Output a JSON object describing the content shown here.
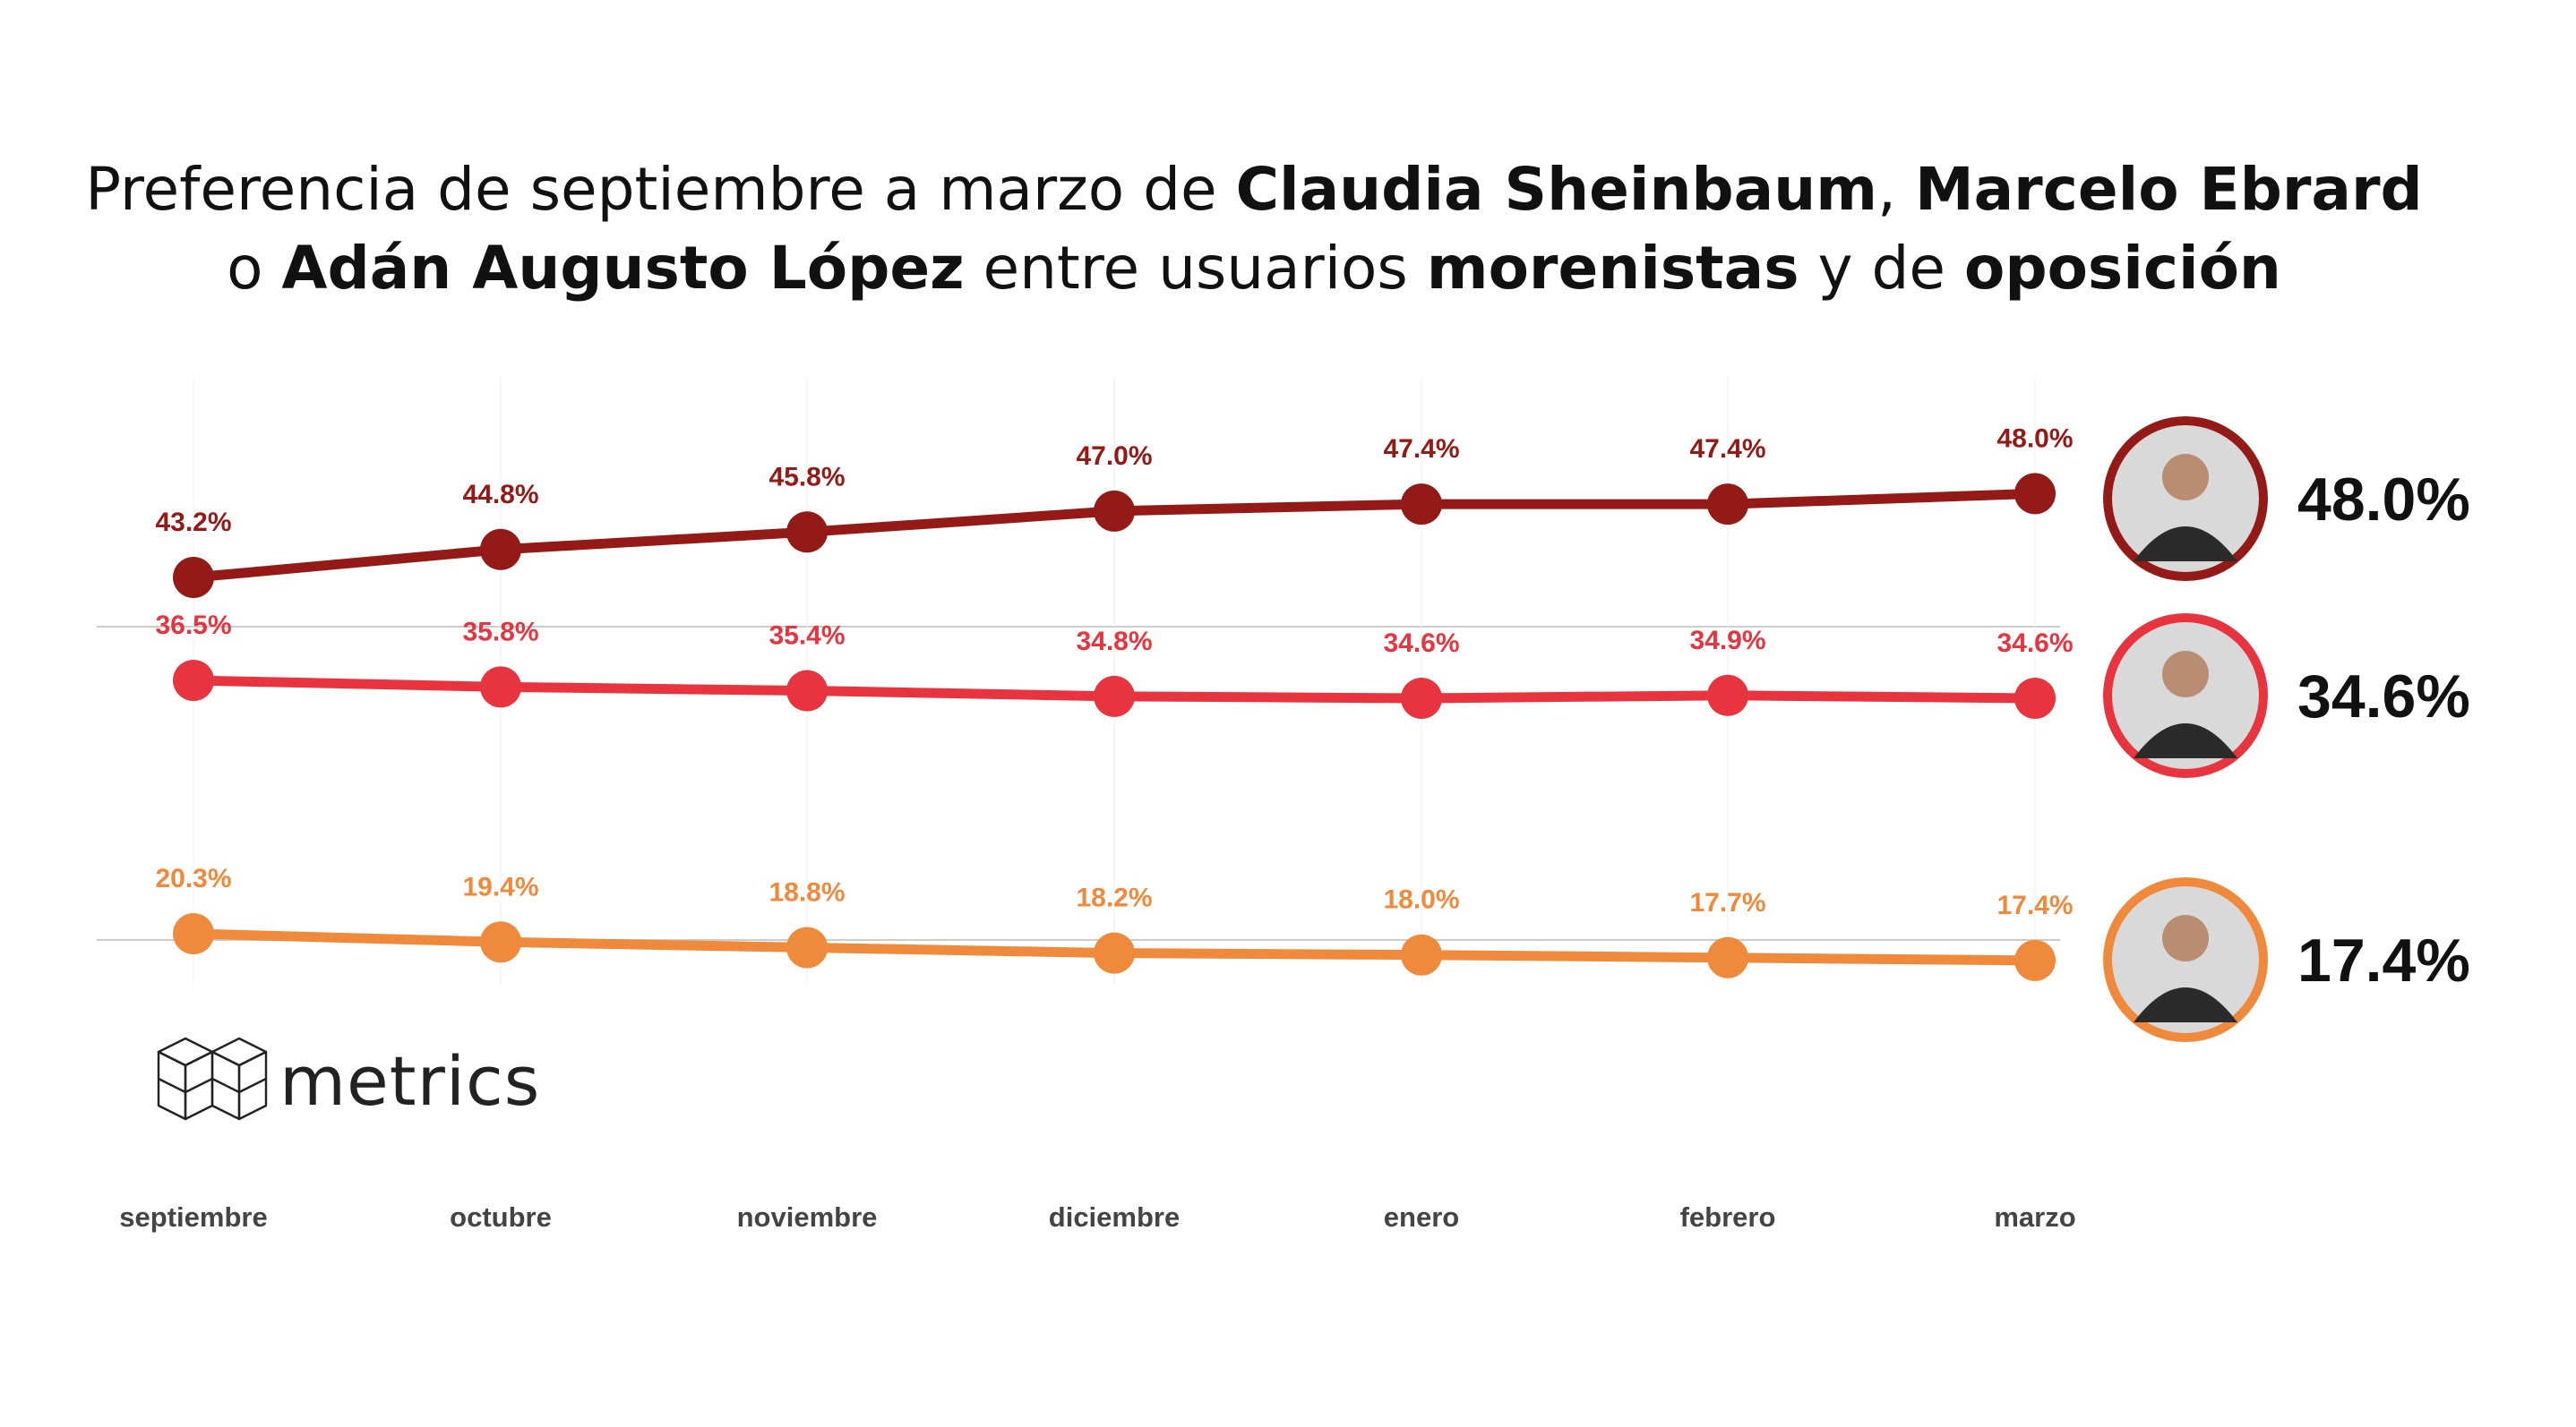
{
  "title": {
    "line1": {
      "t1": "Preferencia de septiembre a marzo de ",
      "b1": "Claudia Sheinbaum",
      "t2": ", ",
      "b2": "Marcelo Ebrard"
    },
    "line2": {
      "t1": "o ",
      "b1": "Adán Augusto López",
      "t2": " entre usuarios ",
      "b2": "morenistas",
      "t3": " y de ",
      "b3": "oposición"
    }
  },
  "logo": {
    "text": "metrics",
    "icon": "cube-grid-icon"
  },
  "colors": {
    "sheinbaum": "#931a16",
    "ebrard": "#e8343f",
    "adan": "#ef8a3c",
    "gridline": "#cccccc",
    "axis_text": "#444444"
  },
  "chart_data": {
    "type": "line",
    "categories": [
      "septiembre",
      "octubre",
      "noviembre",
      "diciembre",
      "enero",
      "febrero",
      "marzo"
    ],
    "series": [
      {
        "key": "sheinbaum",
        "values": [
          43.2,
          44.8,
          45.8,
          47.0,
          47.4,
          47.4,
          48.0
        ],
        "labels": [
          "43.2%",
          "44.8%",
          "45.8%",
          "47.0%",
          "47.4%",
          "47.4%",
          "48.0%"
        ],
        "final": "48.0%",
        "avatar_icon": "portrait-sheinbaum-icon"
      },
      {
        "key": "ebrard",
        "values": [
          36.5,
          35.8,
          35.4,
          34.8,
          34.6,
          34.9,
          34.6
        ],
        "labels": [
          "36.5%",
          "35.8%",
          "35.4%",
          "34.8%",
          "34.6%",
          "34.9%",
          "34.6%"
        ],
        "final": "34.6%",
        "avatar_icon": "portrait-ebrard-icon"
      },
      {
        "key": "adan",
        "values": [
          20.3,
          19.4,
          18.8,
          18.2,
          18.0,
          17.7,
          17.4
        ],
        "labels": [
          "20.3%",
          "19.4%",
          "18.8%",
          "18.2%",
          "18.0%",
          "17.7%",
          "17.4%"
        ],
        "final": "17.4%",
        "avatar_icon": "portrait-adan-icon"
      }
    ],
    "grid": true,
    "legend": "right"
  }
}
